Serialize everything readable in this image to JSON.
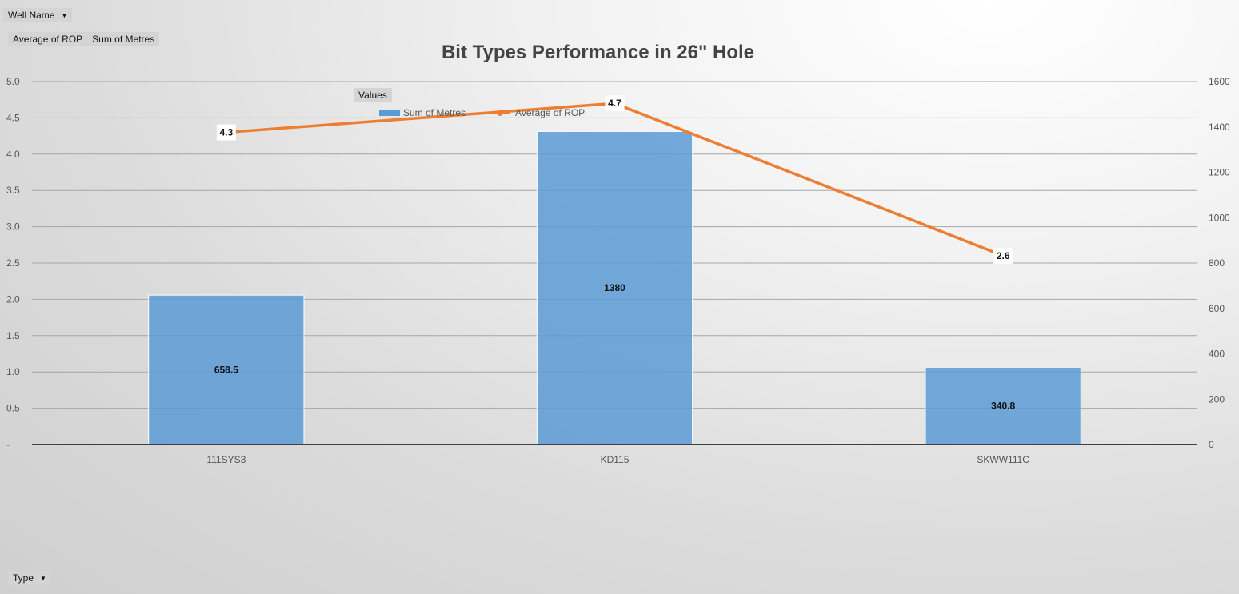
{
  "pivot_controls": {
    "well_name_label": "Well Name",
    "value_fields": [
      "Average of ROP",
      "Sum of Metres"
    ],
    "type_label": "Type",
    "values_label": "Values",
    "dropdown_icon": "dropdown-arrow-icon"
  },
  "chart_data": {
    "type": "bar",
    "title": "Bit Types Performance in 26\" Hole",
    "categories": [
      "111SYS3",
      "KD115",
      "SKWW111C"
    ],
    "series": [
      {
        "name": "Sum of Metres",
        "type": "bar",
        "axis": "secondary",
        "values": [
          658.5,
          1380,
          340.8
        ],
        "labels": [
          "658.5",
          "1380",
          "340.8"
        ],
        "color": "#5b9bd5"
      },
      {
        "name": "Average of ROP",
        "type": "line",
        "axis": "primary",
        "values": [
          4.3,
          4.7,
          2.6
        ],
        "labels": [
          "4.3",
          "4.7",
          "2.6"
        ],
        "color": "#ed7d31"
      }
    ],
    "primary_axis": {
      "ylim": [
        0,
        5
      ],
      "ticks": [
        "-",
        "0.5",
        "1.0",
        "1.5",
        "2.0",
        "2.5",
        "3.0",
        "3.5",
        "4.0",
        "4.5",
        "5.0"
      ]
    },
    "secondary_axis": {
      "ylim": [
        0,
        1600
      ],
      "ticks": [
        "0",
        "200",
        "400",
        "600",
        "800",
        "1000",
        "1200",
        "1400",
        "1600"
      ]
    },
    "grid": true,
    "legend_placement": "top"
  }
}
